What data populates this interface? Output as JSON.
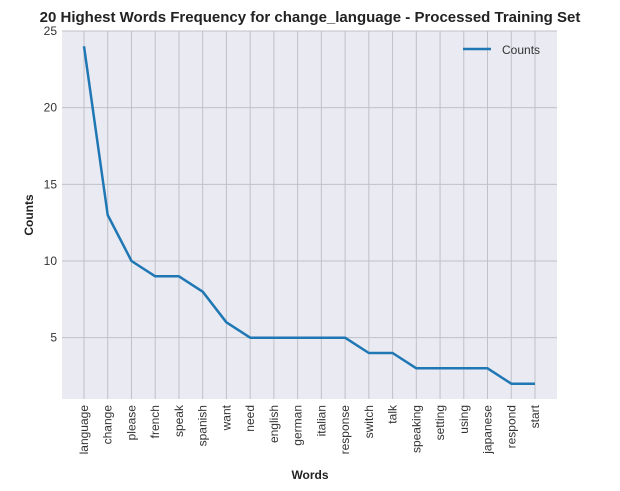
{
  "chart_data": {
    "type": "line",
    "title": "20 Highest Words Frequency for change_language - Processed Training Set",
    "xlabel": "Words",
    "ylabel": "Counts",
    "ylim": [
      1,
      25
    ],
    "yticks": [
      5,
      10,
      15,
      20,
      25
    ],
    "grid": true,
    "legend_position": "top-right",
    "categories": [
      "language",
      "change",
      "please",
      "french",
      "speak",
      "spanish",
      "want",
      "need",
      "english",
      "german",
      "italian",
      "response",
      "switch",
      "talk",
      "speaking",
      "setting",
      "using",
      "japanese",
      "respond",
      "start"
    ],
    "series": [
      {
        "name": "Counts",
        "color": "#1f77b4",
        "values": [
          24,
          13,
          10,
          9,
          9,
          8,
          6,
          5,
          5,
          5,
          5,
          5,
          4,
          4,
          3,
          3,
          3,
          3,
          2,
          2
        ]
      }
    ]
  }
}
